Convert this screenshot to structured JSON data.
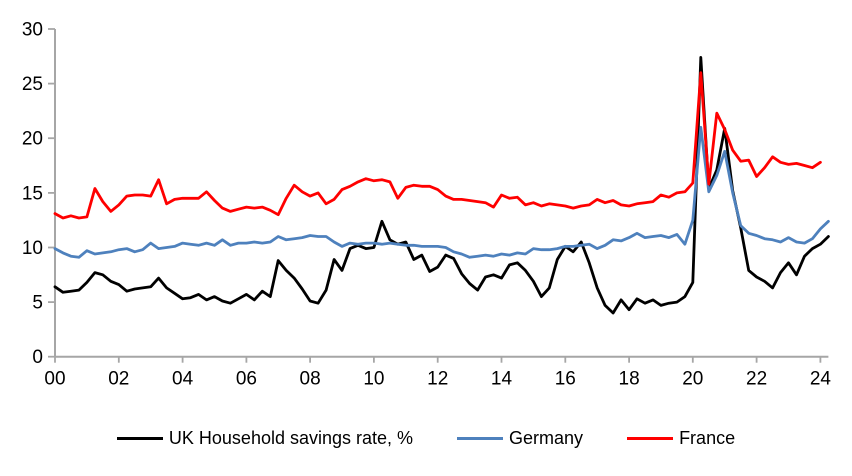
{
  "page": {
    "background": "#FFFFFF"
  },
  "chart_data": {
    "type": "line",
    "title": "",
    "xlabel": "",
    "ylabel": "",
    "ylim": [
      0,
      30
    ],
    "grid": false,
    "legend_position": "bottom",
    "axis_color": "#A6A6A6",
    "y_ticks": [
      0,
      5,
      10,
      15,
      20,
      25,
      30
    ],
    "x_tick_labels": [
      "00",
      "02",
      "04",
      "06",
      "08",
      "10",
      "12",
      "14",
      "16",
      "18",
      "20",
      "22",
      "24"
    ],
    "x_tick_quarter_index": [
      0,
      8,
      16,
      24,
      32,
      40,
      48,
      56,
      64,
      72,
      80,
      88,
      96
    ],
    "frequency": "quarterly",
    "x_start_year": 2000,
    "x": [
      2000,
      2000.25,
      2000.5,
      2000.75,
      2001,
      2001.25,
      2001.5,
      2001.75,
      2002,
      2002.25,
      2002.5,
      2002.75,
      2003,
      2003.25,
      2003.5,
      2003.75,
      2004,
      2004.25,
      2004.5,
      2004.75,
      2005,
      2005.25,
      2005.5,
      2005.75,
      2006,
      2006.25,
      2006.5,
      2006.75,
      2007,
      2007.25,
      2007.5,
      2007.75,
      2008,
      2008.25,
      2008.5,
      2008.75,
      2009,
      2009.25,
      2009.5,
      2009.75,
      2010,
      2010.25,
      2010.5,
      2010.75,
      2011,
      2011.25,
      2011.5,
      2011.75,
      2012,
      2012.25,
      2012.5,
      2012.75,
      2013,
      2013.25,
      2013.5,
      2013.75,
      2014,
      2014.25,
      2014.5,
      2014.75,
      2015,
      2015.25,
      2015.5,
      2015.75,
      2016,
      2016.25,
      2016.5,
      2016.75,
      2017,
      2017.25,
      2017.5,
      2017.75,
      2018,
      2018.25,
      2018.5,
      2018.75,
      2019,
      2019.25,
      2019.5,
      2019.75,
      2020,
      2020.25,
      2020.5,
      2020.75,
      2021,
      2021.25,
      2021.5,
      2021.75,
      2022,
      2022.25,
      2022.5,
      2022.75,
      2023,
      2023.25,
      2023.5,
      2023.75,
      2024,
      2024.25
    ],
    "series": [
      {
        "name": "UK Household savings rate, %",
        "color": "#000000",
        "values": [
          6.4,
          5.9,
          6.0,
          6.1,
          6.8,
          7.7,
          7.5,
          6.9,
          6.6,
          6.0,
          6.2,
          6.3,
          6.4,
          7.2,
          6.3,
          5.8,
          5.3,
          5.4,
          5.7,
          5.2,
          5.5,
          5.1,
          4.9,
          5.3,
          5.7,
          5.2,
          6.0,
          5.5,
          8.8,
          7.9,
          7.2,
          6.2,
          5.1,
          4.9,
          6.1,
          8.9,
          7.9,
          9.9,
          10.2,
          9.9,
          10.0,
          12.4,
          10.7,
          10.3,
          10.5,
          8.9,
          9.3,
          7.8,
          8.2,
          9.3,
          9.0,
          7.6,
          6.7,
          6.1,
          7.3,
          7.5,
          7.2,
          8.4,
          8.6,
          7.9,
          6.9,
          5.5,
          6.3,
          8.9,
          10.1,
          9.6,
          10.5,
          8.6,
          6.3,
          4.7,
          4.0,
          5.2,
          4.3,
          5.3,
          4.9,
          5.2,
          4.7,
          4.9,
          5.0,
          5.5,
          6.8,
          27.4,
          15.4,
          17.1,
          20.9,
          15.2,
          11.8,
          7.9,
          7.3,
          6.9,
          6.3,
          7.7,
          8.6,
          7.5,
          9.2,
          9.9,
          10.3,
          11.0
        ]
      },
      {
        "name": "Germany",
        "color": "#4E81BD",
        "values": [
          9.9,
          9.5,
          9.2,
          9.1,
          9.7,
          9.4,
          9.5,
          9.6,
          9.8,
          9.9,
          9.6,
          9.8,
          10.4,
          9.9,
          10.0,
          10.1,
          10.4,
          10.3,
          10.2,
          10.4,
          10.2,
          10.7,
          10.2,
          10.4,
          10.4,
          10.5,
          10.4,
          10.5,
          11.0,
          10.7,
          10.8,
          10.9,
          11.1,
          11.0,
          11.0,
          10.5,
          10.1,
          10.4,
          10.3,
          10.4,
          10.4,
          10.3,
          10.4,
          10.3,
          10.2,
          10.2,
          10.1,
          10.1,
          10.1,
          10.0,
          9.6,
          9.4,
          9.1,
          9.2,
          9.3,
          9.2,
          9.4,
          9.3,
          9.5,
          9.4,
          9.9,
          9.8,
          9.8,
          9.9,
          10.1,
          10.1,
          10.2,
          10.3,
          9.9,
          10.2,
          10.7,
          10.6,
          10.9,
          11.3,
          10.9,
          11.0,
          11.1,
          10.9,
          11.2,
          10.3,
          12.5,
          21.0,
          15.1,
          16.6,
          18.8,
          15.0,
          12.0,
          11.3,
          11.1,
          10.8,
          10.7,
          10.5,
          10.9,
          10.5,
          10.4,
          10.8,
          11.7,
          12.4
        ]
      },
      {
        "name": "France",
        "color": "#FF0000",
        "values": [
          13.1,
          12.7,
          12.9,
          12.7,
          12.8,
          15.4,
          14.2,
          13.3,
          13.9,
          14.7,
          14.8,
          14.8,
          14.7,
          16.2,
          14.0,
          14.4,
          14.5,
          14.5,
          14.5,
          15.1,
          14.3,
          13.6,
          13.3,
          13.5,
          13.7,
          13.6,
          13.7,
          13.4,
          13.0,
          14.5,
          15.7,
          15.1,
          14.7,
          15.0,
          14.0,
          14.4,
          15.3,
          15.6,
          16.0,
          16.3,
          16.1,
          16.2,
          16.0,
          14.5,
          15.5,
          15.7,
          15.6,
          15.6,
          15.3,
          14.7,
          14.4,
          14.4,
          14.3,
          14.2,
          14.1,
          13.7,
          14.8,
          14.5,
          14.6,
          13.9,
          14.1,
          13.8,
          14.0,
          13.9,
          13.8,
          13.6,
          13.8,
          13.9,
          14.4,
          14.1,
          14.3,
          13.9,
          13.8,
          14.0,
          14.1,
          14.2,
          14.8,
          14.6,
          15.0,
          15.1,
          15.9,
          26.0,
          15.8,
          22.3,
          20.8,
          18.9,
          17.9,
          18.0,
          16.5,
          17.3,
          18.3,
          17.8,
          17.6,
          17.7,
          17.5,
          17.3,
          17.8,
          null
        ]
      }
    ]
  }
}
